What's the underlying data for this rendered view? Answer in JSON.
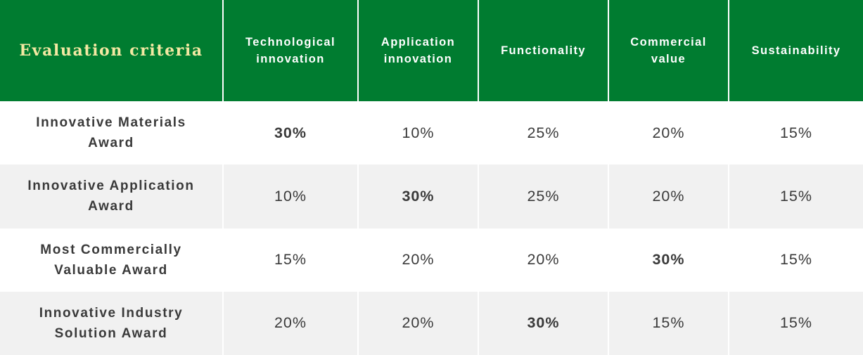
{
  "table": {
    "header": {
      "label": "Evaluation criteria",
      "columns": [
        "Technological\ninnovation",
        "Application\ninnovation",
        "Functionality",
        "Commercial\nvalue",
        "Sustainability"
      ]
    },
    "rows": [
      {
        "award": "Innovative Materials\nAward",
        "values": [
          "30%",
          "10%",
          "25%",
          "20%",
          "15%"
        ]
      },
      {
        "award": "Innovative Application\nAward",
        "values": [
          "10%",
          "30%",
          "25%",
          "20%",
          "15%"
        ]
      },
      {
        "award": "Most Commercially\nValuable Award",
        "values": [
          "15%",
          "20%",
          "20%",
          "30%",
          "15%"
        ]
      },
      {
        "award": "Innovative Industry\nSolution Award",
        "values": [
          "20%",
          "20%",
          "30%",
          "15%",
          "15%"
        ]
      }
    ]
  },
  "colors": {
    "header_background": "#007c30",
    "header_label_text": "#f4e9a3",
    "header_text": "#ffffff",
    "row_alt_background": "#f1f1f1",
    "body_text": "#3a3a3a"
  }
}
